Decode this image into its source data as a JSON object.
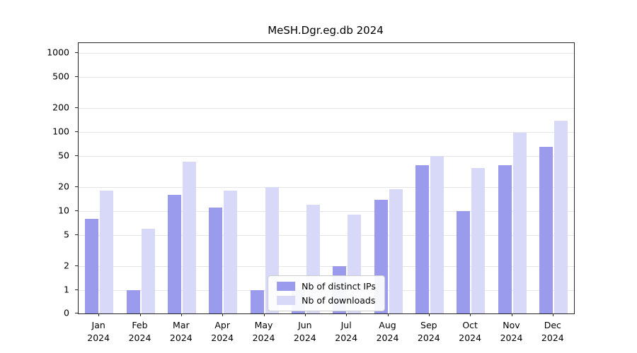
{
  "chart_data": {
    "type": "bar",
    "title": "MeSH.Dgr.eg.db 2024",
    "scale": "symlog",
    "grid": true,
    "legend_position": "lower center",
    "xlabel": "",
    "ylabel": "",
    "year": "2024",
    "categories": [
      "Jan",
      "Feb",
      "Mar",
      "Apr",
      "May",
      "Jun",
      "Jul",
      "Aug",
      "Sep",
      "Oct",
      "Nov",
      "Dec"
    ],
    "yticks": [
      0,
      1,
      2,
      5,
      10,
      20,
      50,
      100,
      200,
      500,
      1000
    ],
    "ylim": [
      0,
      1200
    ],
    "series": [
      {
        "name": "Nb of distinct IPs",
        "color": "#9b9bee",
        "values": [
          8,
          1,
          16,
          11,
          1,
          1,
          2,
          14,
          38,
          10,
          38,
          65
        ]
      },
      {
        "name": "Nb of downloads",
        "color": "#d8d8f8",
        "values": [
          18,
          6,
          42,
          18,
          20,
          12,
          9,
          19,
          50,
          35,
          98,
          140
        ]
      }
    ]
  }
}
